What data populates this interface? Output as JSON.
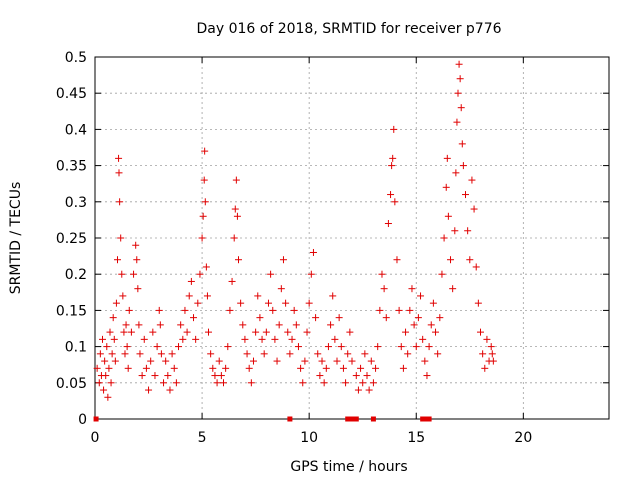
{
  "chart_data": {
    "type": "scatter",
    "title": "Day 016 of 2018, SRMTID for receiver p776",
    "xlabel": "GPS time / hours",
    "ylabel": "SRMTID / TECUs",
    "xlim": [
      0,
      24
    ],
    "ylim": [
      0,
      0.5
    ],
    "xticks": [
      0,
      5,
      10,
      15,
      20
    ],
    "xtick_labels": [
      "0",
      "5",
      "10",
      "15",
      "20"
    ],
    "yticks": [
      0,
      0.05,
      0.1,
      0.15,
      0.2,
      0.25,
      0.3,
      0.35,
      0.4,
      0.45,
      0.5
    ],
    "ytick_labels": [
      "0",
      "0.05",
      "0.1",
      "0.15",
      "0.2",
      "0.25",
      "0.3",
      "0.35",
      "0.4",
      "0.45",
      "0.5"
    ],
    "grid": true,
    "marker": "plus",
    "color": "#e00000",
    "series": [
      {
        "name": "SRMTID",
        "points": [
          [
            0.1,
            0.07
          ],
          [
            0.2,
            0.05
          ],
          [
            0.25,
            0.09
          ],
          [
            0.3,
            0.06
          ],
          [
            0.35,
            0.11
          ],
          [
            0.4,
            0.04
          ],
          [
            0.45,
            0.08
          ],
          [
            0.5,
            0.06
          ],
          [
            0.55,
            0.1
          ],
          [
            0.6,
            0.03
          ],
          [
            0.65,
            0.07
          ],
          [
            0.7,
            0.12
          ],
          [
            0.75,
            0.05
          ],
          [
            0.8,
            0.09
          ],
          [
            0.85,
            0.14
          ],
          [
            0.9,
            0.11
          ],
          [
            0.95,
            0.08
          ],
          [
            1.0,
            0.16
          ],
          [
            1.05,
            0.22
          ],
          [
            1.1,
            0.36
          ],
          [
            1.12,
            0.34
          ],
          [
            1.15,
            0.3
          ],
          [
            1.2,
            0.25
          ],
          [
            1.25,
            0.2
          ],
          [
            1.3,
            0.17
          ],
          [
            1.35,
            0.12
          ],
          [
            1.4,
            0.09
          ],
          [
            1.45,
            0.13
          ],
          [
            1.5,
            0.1
          ],
          [
            1.55,
            0.07
          ],
          [
            1.6,
            0.15
          ],
          [
            1.7,
            0.12
          ],
          [
            1.8,
            0.2
          ],
          [
            1.9,
            0.24
          ],
          [
            1.95,
            0.22
          ],
          [
            2.0,
            0.18
          ],
          [
            2.05,
            0.13
          ],
          [
            2.1,
            0.09
          ],
          [
            2.2,
            0.06
          ],
          [
            2.3,
            0.11
          ],
          [
            2.4,
            0.07
          ],
          [
            2.5,
            0.04
          ],
          [
            2.6,
            0.08
          ],
          [
            2.7,
            0.12
          ],
          [
            2.8,
            0.06
          ],
          [
            2.9,
            0.1
          ],
          [
            3.0,
            0.15
          ],
          [
            3.05,
            0.13
          ],
          [
            3.1,
            0.09
          ],
          [
            3.2,
            0.05
          ],
          [
            3.3,
            0.08
          ],
          [
            3.4,
            0.06
          ],
          [
            3.5,
            0.04
          ],
          [
            3.6,
            0.09
          ],
          [
            3.7,
            0.07
          ],
          [
            3.8,
            0.05
          ],
          [
            3.9,
            0.1
          ],
          [
            4.0,
            0.13
          ],
          [
            4.1,
            0.11
          ],
          [
            4.2,
            0.15
          ],
          [
            4.3,
            0.12
          ],
          [
            4.4,
            0.17
          ],
          [
            4.5,
            0.19
          ],
          [
            4.6,
            0.14
          ],
          [
            4.7,
            0.11
          ],
          [
            4.8,
            0.16
          ],
          [
            4.9,
            0.2
          ],
          [
            5.0,
            0.25
          ],
          [
            5.05,
            0.28
          ],
          [
            5.1,
            0.33
          ],
          [
            5.12,
            0.37
          ],
          [
            5.15,
            0.3
          ],
          [
            5.2,
            0.21
          ],
          [
            5.25,
            0.17
          ],
          [
            5.3,
            0.12
          ],
          [
            5.4,
            0.09
          ],
          [
            5.5,
            0.07
          ],
          [
            5.6,
            0.06
          ],
          [
            5.7,
            0.05
          ],
          [
            5.8,
            0.08
          ],
          [
            5.9,
            0.06
          ],
          [
            6.0,
            0.05
          ],
          [
            6.1,
            0.07
          ],
          [
            6.2,
            0.1
          ],
          [
            6.3,
            0.15
          ],
          [
            6.4,
            0.19
          ],
          [
            6.5,
            0.25
          ],
          [
            6.55,
            0.29
          ],
          [
            6.6,
            0.33
          ],
          [
            6.65,
            0.28
          ],
          [
            6.7,
            0.22
          ],
          [
            6.8,
            0.16
          ],
          [
            6.9,
            0.13
          ],
          [
            7.0,
            0.11
          ],
          [
            7.1,
            0.09
          ],
          [
            7.2,
            0.07
          ],
          [
            7.3,
            0.05
          ],
          [
            7.4,
            0.08
          ],
          [
            7.5,
            0.12
          ],
          [
            7.6,
            0.17
          ],
          [
            7.7,
            0.14
          ],
          [
            7.8,
            0.11
          ],
          [
            7.9,
            0.09
          ],
          [
            8.0,
            0.12
          ],
          [
            8.1,
            0.16
          ],
          [
            8.2,
            0.2
          ],
          [
            8.3,
            0.15
          ],
          [
            8.4,
            0.11
          ],
          [
            8.5,
            0.08
          ],
          [
            8.6,
            0.13
          ],
          [
            8.7,
            0.18
          ],
          [
            8.8,
            0.22
          ],
          [
            8.9,
            0.16
          ],
          [
            9.0,
            0.12
          ],
          [
            9.1,
            0.09
          ],
          [
            9.2,
            0.11
          ],
          [
            9.3,
            0.15
          ],
          [
            9.4,
            0.13
          ],
          [
            9.5,
            0.1
          ],
          [
            9.6,
            0.07
          ],
          [
            9.7,
            0.05
          ],
          [
            9.8,
            0.08
          ],
          [
            9.9,
            0.12
          ],
          [
            10.0,
            0.16
          ],
          [
            10.1,
            0.2
          ],
          [
            10.2,
            0.23
          ],
          [
            10.3,
            0.14
          ],
          [
            10.4,
            0.09
          ],
          [
            10.5,
            0.06
          ],
          [
            10.6,
            0.08
          ],
          [
            10.7,
            0.05
          ],
          [
            10.8,
            0.07
          ],
          [
            10.9,
            0.1
          ],
          [
            11.0,
            0.13
          ],
          [
            11.1,
            0.17
          ],
          [
            11.2,
            0.11
          ],
          [
            11.3,
            0.08
          ],
          [
            11.4,
            0.14
          ],
          [
            11.5,
            0.1
          ],
          [
            11.6,
            0.07
          ],
          [
            11.7,
            0.05
          ],
          [
            11.8,
            0.09
          ],
          [
            11.9,
            0.12
          ],
          [
            12.0,
            0.08
          ],
          [
            12.2,
            0.06
          ],
          [
            12.3,
            0.04
          ],
          [
            12.4,
            0.07
          ],
          [
            12.5,
            0.05
          ],
          [
            12.6,
            0.09
          ],
          [
            12.7,
            0.06
          ],
          [
            12.8,
            0.04
          ],
          [
            12.9,
            0.08
          ],
          [
            13.0,
            0.05
          ],
          [
            13.1,
            0.07
          ],
          [
            13.2,
            0.1
          ],
          [
            13.3,
            0.15
          ],
          [
            13.4,
            0.2
          ],
          [
            13.5,
            0.18
          ],
          [
            13.6,
            0.14
          ],
          [
            13.7,
            0.27
          ],
          [
            13.8,
            0.31
          ],
          [
            13.85,
            0.35
          ],
          [
            13.9,
            0.36
          ],
          [
            13.95,
            0.4
          ],
          [
            14.0,
            0.3
          ],
          [
            14.1,
            0.22
          ],
          [
            14.2,
            0.15
          ],
          [
            14.3,
            0.1
          ],
          [
            14.4,
            0.07
          ],
          [
            14.5,
            0.12
          ],
          [
            14.6,
            0.09
          ],
          [
            14.7,
            0.15
          ],
          [
            14.8,
            0.18
          ],
          [
            14.9,
            0.13
          ],
          [
            15.0,
            0.1
          ],
          [
            15.1,
            0.14
          ],
          [
            15.2,
            0.17
          ],
          [
            15.3,
            0.11
          ],
          [
            15.4,
            0.08
          ],
          [
            15.5,
            0.06
          ],
          [
            15.6,
            0.1
          ],
          [
            15.7,
            0.13
          ],
          [
            15.8,
            0.16
          ],
          [
            15.9,
            0.12
          ],
          [
            16.0,
            0.09
          ],
          [
            16.1,
            0.14
          ],
          [
            16.2,
            0.2
          ],
          [
            16.3,
            0.25
          ],
          [
            16.4,
            0.32
          ],
          [
            16.45,
            0.36
          ],
          [
            16.5,
            0.28
          ],
          [
            16.6,
            0.22
          ],
          [
            16.7,
            0.18
          ],
          [
            16.8,
            0.26
          ],
          [
            16.85,
            0.34
          ],
          [
            16.9,
            0.41
          ],
          [
            16.95,
            0.45
          ],
          [
            17.0,
            0.49
          ],
          [
            17.05,
            0.47
          ],
          [
            17.1,
            0.43
          ],
          [
            17.15,
            0.38
          ],
          [
            17.2,
            0.35
          ],
          [
            17.3,
            0.31
          ],
          [
            17.4,
            0.26
          ],
          [
            17.5,
            0.22
          ],
          [
            17.6,
            0.33
          ],
          [
            17.7,
            0.29
          ],
          [
            17.8,
            0.21
          ],
          [
            17.9,
            0.16
          ],
          [
            18.0,
            0.12
          ],
          [
            18.1,
            0.09
          ],
          [
            18.2,
            0.07
          ],
          [
            18.3,
            0.11
          ],
          [
            18.4,
            0.08
          ],
          [
            18.5,
            0.1
          ],
          [
            18.55,
            0.09
          ],
          [
            18.6,
            0.08
          ]
        ]
      }
    ],
    "zero_markers_x": [
      0.05,
      9.1,
      11.8,
      11.9,
      12.0,
      12.1,
      12.2,
      13.0,
      15.3,
      15.4,
      15.5,
      15.6
    ]
  }
}
